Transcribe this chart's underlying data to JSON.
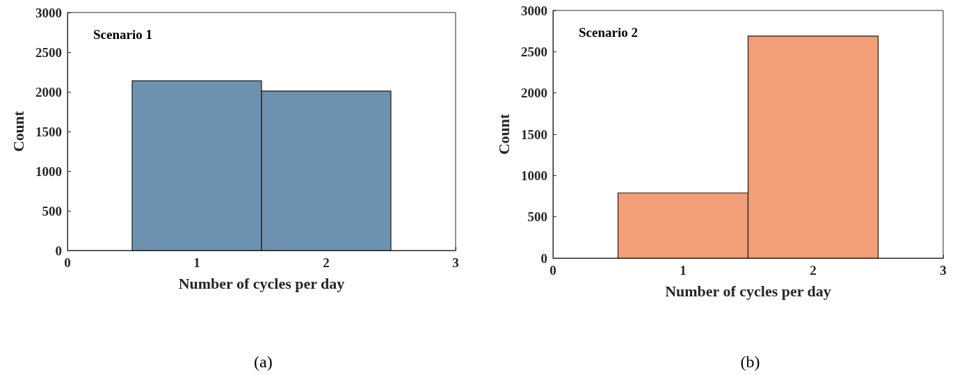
{
  "chart_data": [
    {
      "type": "histogram",
      "title": "Scenario 1",
      "xlabel": "Number of cycles per day",
      "ylabel": "Count",
      "bins": [
        0.5,
        1.5,
        2.5
      ],
      "values": [
        2140,
        2010
      ],
      "color": "#6d92b0",
      "xlim": [
        0,
        3
      ],
      "xticks": [
        0,
        1,
        2,
        3
      ],
      "ylim": [
        0,
        3000
      ],
      "yticks": [
        0,
        500,
        1000,
        1500,
        2000,
        2500,
        3000
      ],
      "annotations": [
        "(a)"
      ]
    },
    {
      "type": "histogram",
      "title": "Scenario 2",
      "xlabel": "Number of cycles per day",
      "ylabel": "Count",
      "bins": [
        0.5,
        1.5,
        2.5
      ],
      "values": [
        790,
        2690
      ],
      "color": "#f29e78",
      "xlim": [
        0,
        3
      ],
      "xticks": [
        0,
        1,
        2,
        3
      ],
      "ylim": [
        0,
        3000
      ],
      "yticks": [
        0,
        500,
        1000,
        1500,
        2000,
        2500,
        3000
      ],
      "annotations": [
        "(b)"
      ]
    }
  ]
}
